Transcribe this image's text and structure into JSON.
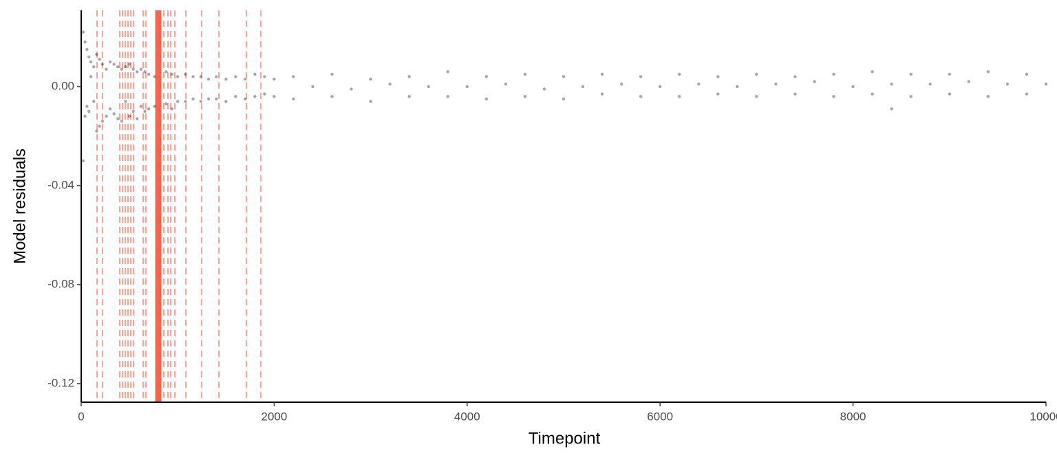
{
  "chart_data": {
    "type": "scatter",
    "x_label": "Timepoint",
    "y_label": "Model residuals",
    "xlim": [
      0,
      10000
    ],
    "ylim": [
      -0.1275,
      0.0308
    ],
    "xticks": [
      0,
      2000,
      4000,
      6000,
      8000,
      10000
    ],
    "yticks": [
      -0.12,
      -0.08,
      -0.04,
      {
        "value": 0,
        "label": "0.00"
      }
    ],
    "point_color": "#000000",
    "line_color": "#ff6347",
    "changepoints": [
      164,
      221,
      399,
      428,
      456,
      485,
      514,
      542,
      642,
      670,
      856,
      899,
      927,
      970,
      1084,
      1248,
      1427,
      1712,
      1862
    ],
    "main_changepoint": 799,
    "x": [
      20,
      20,
      40,
      40,
      60,
      60,
      80,
      80,
      100,
      100,
      130,
      130,
      160,
      160,
      190,
      190,
      220,
      220,
      260,
      260,
      300,
      300,
      340,
      340,
      380,
      380,
      420,
      420,
      460,
      460,
      500,
      500,
      540,
      540,
      580,
      580,
      620,
      620,
      660,
      660,
      700,
      700,
      760,
      760,
      880,
      880,
      940,
      940,
      1000,
      1000,
      1080,
      1080,
      1160,
      1160,
      1240,
      1240,
      1320,
      1320,
      1400,
      1400,
      1500,
      1500,
      1600,
      1600,
      1700,
      1700,
      1800,
      1800,
      1900,
      1900,
      2000,
      2000,
      2200,
      2200,
      2400,
      2600,
      2600,
      2800,
      3000,
      3000,
      3200,
      3400,
      3400,
      3600,
      3800,
      3800,
      4000,
      4200,
      4200,
      4400,
      4600,
      4600,
      4800,
      5000,
      5000,
      5200,
      5400,
      5400,
      5600,
      5800,
      5800,
      6000,
      6200,
      6200,
      6400,
      6600,
      6600,
      6800,
      7000,
      7000,
      7200,
      7400,
      7400,
      7600,
      7800,
      7800,
      8000,
      8200,
      8200,
      8400,
      8600,
      8600,
      8800,
      9000,
      9000,
      9200,
      9400,
      9400,
      9600,
      9800,
      9800,
      10000,
      8400
    ],
    "values": [
      0.022,
      -0.03,
      0.018,
      -0.012,
      0.015,
      -0.008,
      0.012,
      -0.01,
      0.01,
      0.004,
      0.008,
      -0.006,
      0.013,
      -0.018,
      0.011,
      -0.016,
      0.009,
      -0.014,
      0.007,
      -0.012,
      0.01,
      -0.009,
      0.009,
      -0.011,
      0.008,
      -0.013,
      0.007,
      -0.014,
      0.008,
      -0.006,
      0.009,
      -0.012,
      0.007,
      -0.01,
      0.006,
      -0.013,
      0.007,
      -0.008,
      0.006,
      -0.01,
      0.005,
      -0.009,
      0.004,
      -0.008,
      0.006,
      -0.007,
      0.005,
      -0.009,
      0.004,
      -0.006,
      0.005,
      -0.006,
      0.004,
      -0.005,
      0.004,
      -0.006,
      0.003,
      -0.005,
      0.004,
      -0.005,
      0.003,
      -0.006,
      0.004,
      -0.004,
      0.003,
      -0.005,
      0.005,
      -0.004,
      0.004,
      -0.003,
      0.003,
      -0.004,
      0.004,
      -0.005,
      0.0,
      0.005,
      -0.004,
      -0.001,
      0.003,
      -0.006,
      0.001,
      0.004,
      -0.004,
      0.0,
      0.006,
      -0.004,
      0.0,
      0.004,
      -0.005,
      0.001,
      0.005,
      -0.004,
      -0.001,
      0.004,
      -0.005,
      0.0,
      0.005,
      -0.003,
      0.001,
      0.004,
      -0.004,
      0.0,
      0.005,
      -0.004,
      0.001,
      0.004,
      -0.003,
      0.0,
      0.005,
      -0.004,
      0.001,
      0.004,
      -0.003,
      0.002,
      0.005,
      -0.004,
      0.0,
      0.006,
      -0.003,
      0.001,
      0.005,
      -0.004,
      0.001,
      0.005,
      -0.003,
      0.002,
      0.006,
      -0.004,
      0.001,
      0.005,
      -0.003,
      0.001,
      -0.009
    ]
  }
}
